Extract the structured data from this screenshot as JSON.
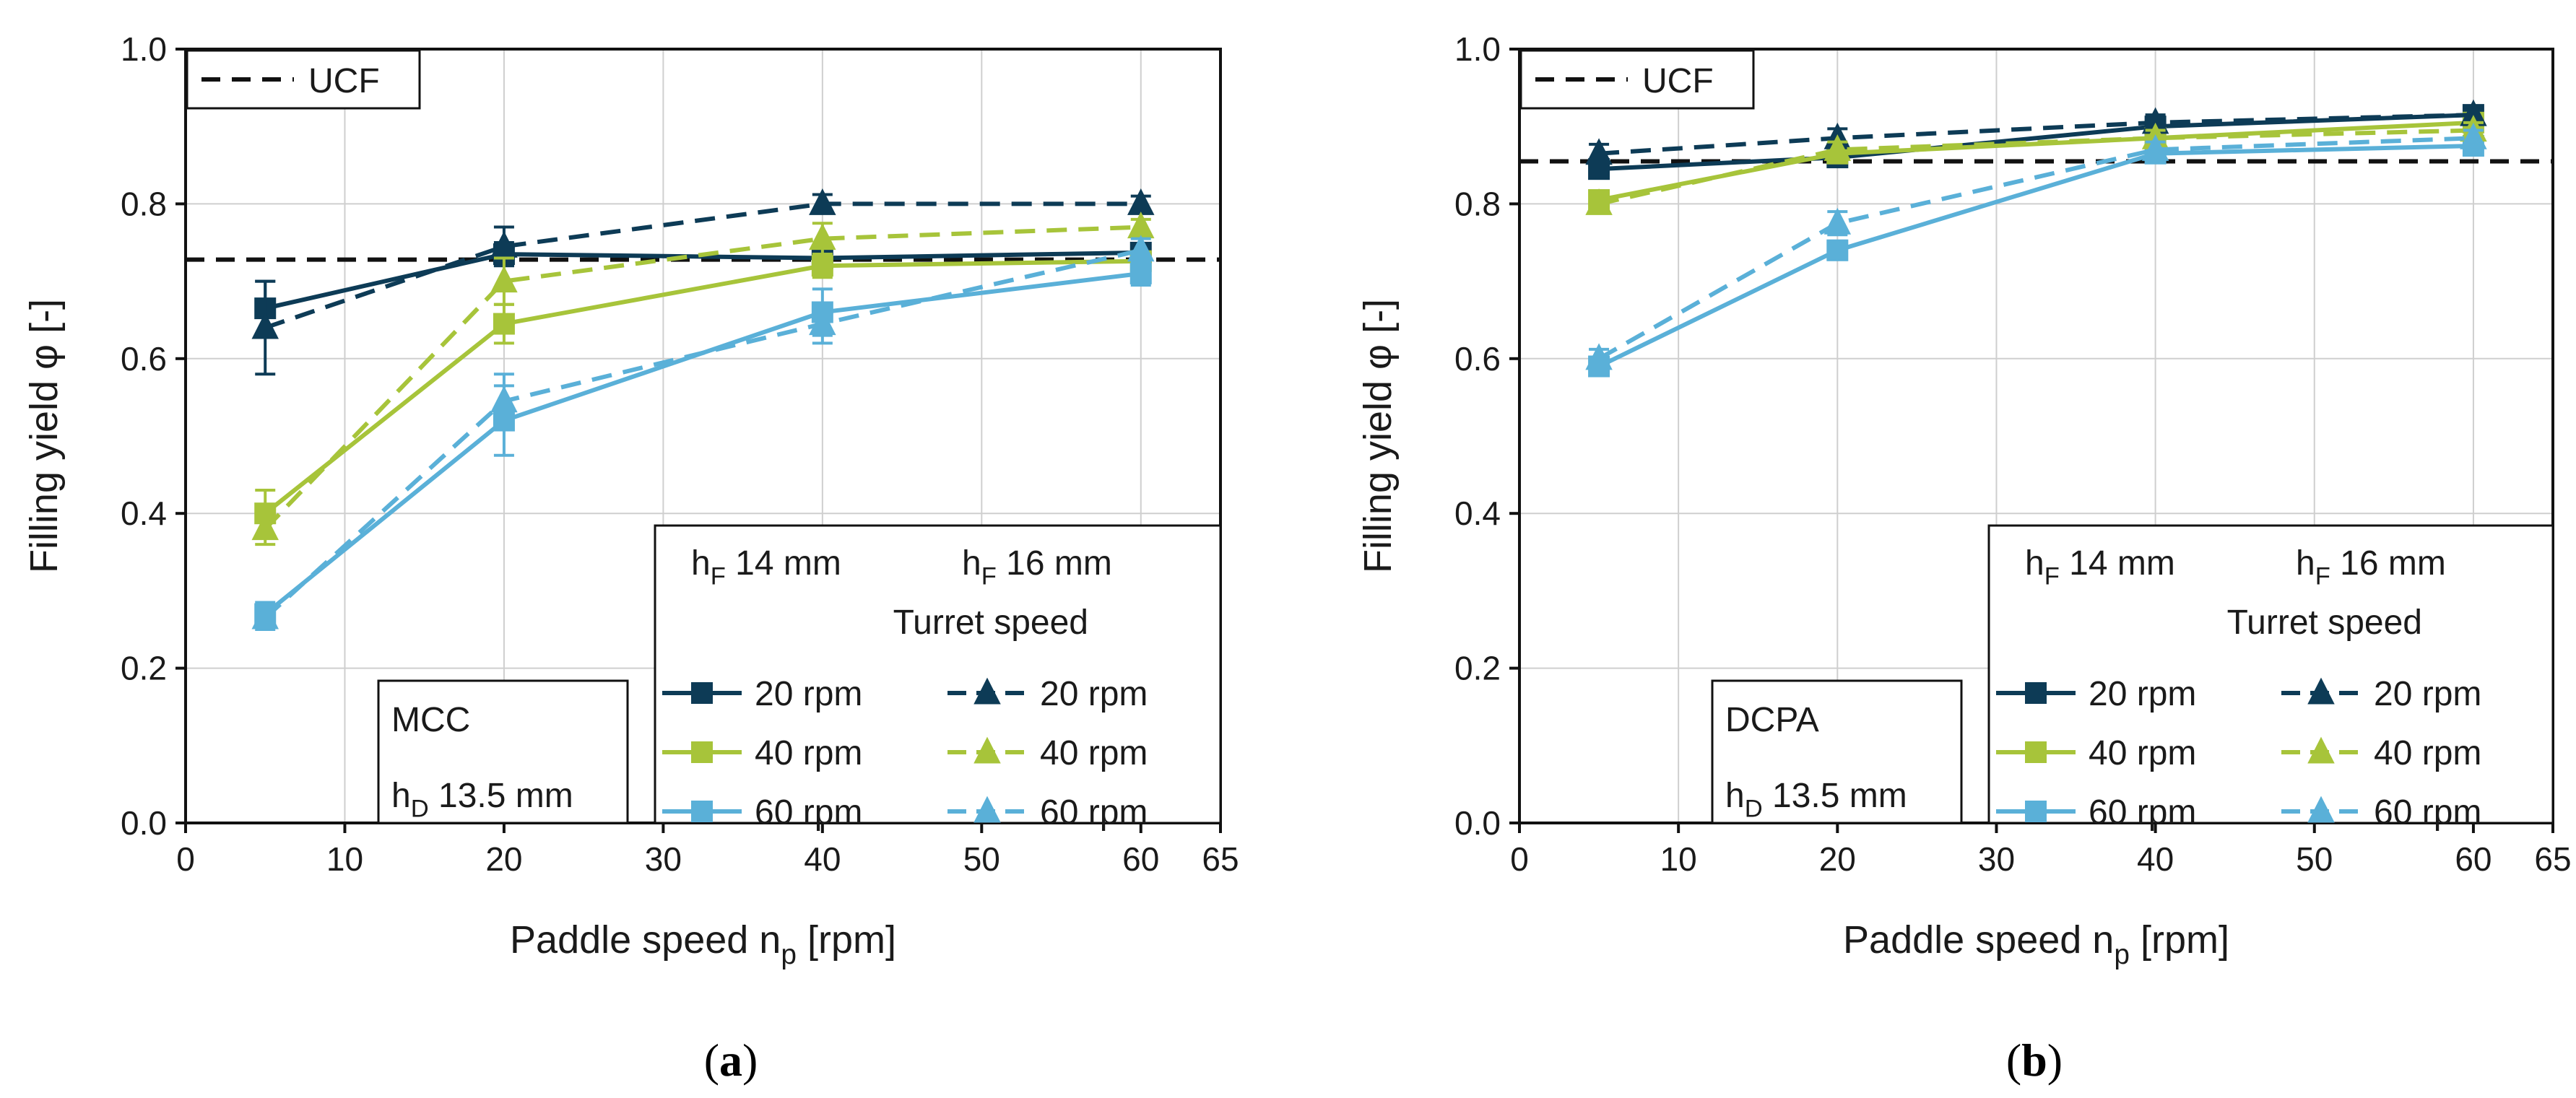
{
  "chart_data": [
    {
      "type": "line",
      "panel_label": {
        "open": "(",
        "letter": "a",
        "close": ")"
      },
      "xlabel": {
        "main": "Paddle speed n",
        "sub": "p",
        "unit": " [rpm]"
      },
      "ylabel": "Filling yield φ [-]",
      "xlim": [
        0,
        65
      ],
      "ylim": [
        0,
        1.0
      ],
      "xticks": [
        0,
        10,
        20,
        30,
        40,
        50,
        60,
        65
      ],
      "yticks": [
        "0.0",
        "0.2",
        "0.4",
        "0.6",
        "0.8",
        "1.0"
      ],
      "grid": true,
      "reference_line": {
        "name": "UCF",
        "y": 0.728,
        "style": "dashed"
      },
      "material_box": {
        "line1": "MCC",
        "line2_main": "h",
        "line2_sub": "D",
        "line2_rest": " 13.5 mm"
      },
      "legend": {
        "placement": "bottom-right",
        "col1_header": {
          "main": "h",
          "sub": "F",
          "rest": " 14 mm"
        },
        "col2_header": {
          "main": "h",
          "sub": "F",
          "rest": " 16 mm"
        },
        "subheader": "Turret speed"
      },
      "x": [
        5,
        20,
        40,
        60
      ],
      "series": [
        {
          "name": "20 rpm",
          "group": "hF 14 mm",
          "color": "#0d3b56",
          "marker": "square",
          "dash": "solid",
          "values": [
            0.665,
            0.735,
            0.73,
            0.737
          ],
          "errors": [
            0.035,
            0.015,
            0.015,
            0.01
          ]
        },
        {
          "name": "40 rpm",
          "group": "hF 14 mm",
          "color": "#a7c43a",
          "marker": "square",
          "dash": "solid",
          "values": [
            0.4,
            0.645,
            0.72,
            0.726
          ],
          "errors": [
            0.03,
            0.025,
            0.015,
            0.01
          ]
        },
        {
          "name": "60 rpm",
          "group": "hF 14 mm",
          "color": "#5ab0d8",
          "marker": "square",
          "dash": "solid",
          "values": [
            0.27,
            0.52,
            0.66,
            0.71
          ],
          "errors": [
            0.015,
            0.045,
            0.03,
            0.015
          ]
        },
        {
          "name": "20 rpm",
          "group": "hF 16 mm",
          "color": "#0d3b56",
          "marker": "triangle",
          "dash": "dashed",
          "values": [
            0.64,
            0.745,
            0.8,
            0.8
          ],
          "errors": [
            0.06,
            0.025,
            0.012,
            0.01
          ]
        },
        {
          "name": "40 rpm",
          "group": "hF 16 mm",
          "color": "#a7c43a",
          "marker": "triangle",
          "dash": "dashed",
          "values": [
            0.38,
            0.7,
            0.755,
            0.77
          ],
          "errors": [
            0.02,
            0.03,
            0.02,
            0.01
          ]
        },
        {
          "name": "60 rpm",
          "group": "hF 16 mm",
          "color": "#5ab0d8",
          "marker": "triangle",
          "dash": "dashed",
          "values": [
            0.265,
            0.545,
            0.645,
            0.74
          ],
          "errors": [
            0.015,
            0.035,
            0.025,
            0.015
          ]
        }
      ]
    },
    {
      "type": "line",
      "panel_label": {
        "open": "(",
        "letter": "b",
        "close": ")"
      },
      "xlabel": {
        "main": "Paddle speed n",
        "sub": "p",
        "unit": " [rpm]"
      },
      "ylabel": "Filling yield φ [-]",
      "xlim": [
        0,
        65
      ],
      "ylim": [
        0,
        1.0
      ],
      "xticks": [
        0,
        10,
        20,
        30,
        40,
        50,
        60,
        65
      ],
      "yticks": [
        "0.0",
        "0.2",
        "0.4",
        "0.6",
        "0.8",
        "1.0"
      ],
      "grid": true,
      "reference_line": {
        "name": "UCF",
        "y": 0.855,
        "style": "dashed"
      },
      "material_box": {
        "line1": "DCPA",
        "line2_main": "h",
        "line2_sub": "D",
        "line2_rest": " 13.5 mm"
      },
      "legend": {
        "placement": "bottom-right",
        "col1_header": {
          "main": "h",
          "sub": "F",
          "rest": " 14 mm"
        },
        "col2_header": {
          "main": "h",
          "sub": "F",
          "rest": " 16 mm"
        },
        "subheader": "Turret speed"
      },
      "x": [
        5,
        20,
        40,
        60
      ],
      "series": [
        {
          "name": "20 rpm",
          "group": "hF 14 mm",
          "color": "#0d3b56",
          "marker": "square",
          "dash": "solid",
          "values": [
            0.845,
            0.86,
            0.9,
            0.915
          ],
          "errors": [
            0.01,
            0.01,
            0.01,
            0.008
          ]
        },
        {
          "name": "40 rpm",
          "group": "hF 14 mm",
          "color": "#a7c43a",
          "marker": "square",
          "dash": "solid",
          "values": [
            0.805,
            0.865,
            0.885,
            0.905
          ],
          "errors": [
            0.01,
            0.01,
            0.01,
            0.008
          ]
        },
        {
          "name": "60 rpm",
          "group": "hF 14 mm",
          "color": "#5ab0d8",
          "marker": "square",
          "dash": "solid",
          "values": [
            0.59,
            0.74,
            0.865,
            0.875
          ],
          "errors": [
            0.012,
            0.012,
            0.01,
            0.008
          ]
        },
        {
          "name": "20 rpm",
          "group": "hF 16 mm",
          "color": "#0d3b56",
          "marker": "triangle",
          "dash": "dashed",
          "values": [
            0.865,
            0.885,
            0.905,
            0.915
          ],
          "errors": [
            0.012,
            0.012,
            0.01,
            0.01
          ]
        },
        {
          "name": "40 rpm",
          "group": "hF 16 mm",
          "color": "#a7c43a",
          "marker": "triangle",
          "dash": "dashed",
          "values": [
            0.8,
            0.87,
            0.885,
            0.895
          ],
          "errors": [
            0.01,
            0.01,
            0.01,
            0.01
          ]
        },
        {
          "name": "60 rpm",
          "group": "hF 16 mm",
          "color": "#5ab0d8",
          "marker": "triangle",
          "dash": "dashed",
          "values": [
            0.6,
            0.775,
            0.87,
            0.885
          ],
          "errors": [
            0.012,
            0.015,
            0.01,
            0.01
          ]
        }
      ]
    }
  ]
}
